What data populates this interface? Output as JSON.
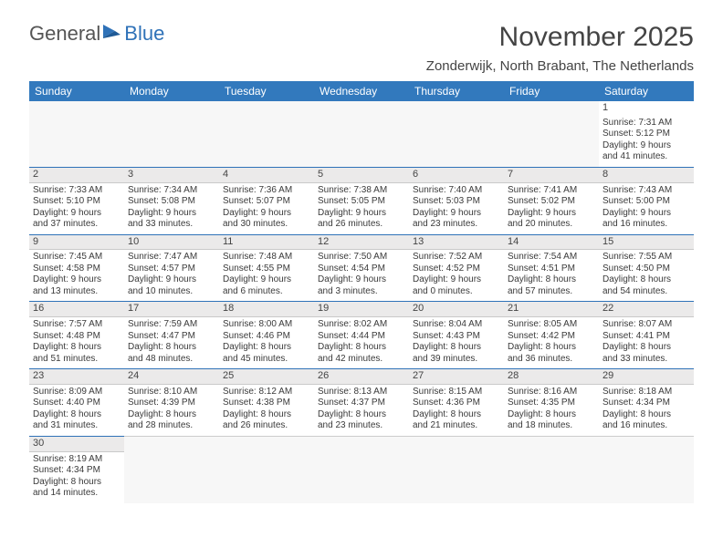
{
  "logo": {
    "text_general": "General",
    "text_blue": "Blue"
  },
  "header": {
    "month_title": "November 2025",
    "location": "Zonderwijk, North Brabant, The Netherlands"
  },
  "colors": {
    "header_bg": "#3279bd",
    "header_fg": "#ffffff",
    "row_divider": "#2f72b8",
    "daynum_bg": "#ebeaea",
    "text": "#3a3a3a"
  },
  "day_headers": [
    "Sunday",
    "Monday",
    "Tuesday",
    "Wednesday",
    "Thursday",
    "Friday",
    "Saturday"
  ],
  "weeks": [
    [
      null,
      null,
      null,
      null,
      null,
      null,
      {
        "n": "1",
        "sr": "Sunrise: 7:31 AM",
        "ss": "Sunset: 5:12 PM",
        "d1": "Daylight: 9 hours",
        "d2": "and 41 minutes."
      }
    ],
    [
      {
        "n": "2",
        "sr": "Sunrise: 7:33 AM",
        "ss": "Sunset: 5:10 PM",
        "d1": "Daylight: 9 hours",
        "d2": "and 37 minutes."
      },
      {
        "n": "3",
        "sr": "Sunrise: 7:34 AM",
        "ss": "Sunset: 5:08 PM",
        "d1": "Daylight: 9 hours",
        "d2": "and 33 minutes."
      },
      {
        "n": "4",
        "sr": "Sunrise: 7:36 AM",
        "ss": "Sunset: 5:07 PM",
        "d1": "Daylight: 9 hours",
        "d2": "and 30 minutes."
      },
      {
        "n": "5",
        "sr": "Sunrise: 7:38 AM",
        "ss": "Sunset: 5:05 PM",
        "d1": "Daylight: 9 hours",
        "d2": "and 26 minutes."
      },
      {
        "n": "6",
        "sr": "Sunrise: 7:40 AM",
        "ss": "Sunset: 5:03 PM",
        "d1": "Daylight: 9 hours",
        "d2": "and 23 minutes."
      },
      {
        "n": "7",
        "sr": "Sunrise: 7:41 AM",
        "ss": "Sunset: 5:02 PM",
        "d1": "Daylight: 9 hours",
        "d2": "and 20 minutes."
      },
      {
        "n": "8",
        "sr": "Sunrise: 7:43 AM",
        "ss": "Sunset: 5:00 PM",
        "d1": "Daylight: 9 hours",
        "d2": "and 16 minutes."
      }
    ],
    [
      {
        "n": "9",
        "sr": "Sunrise: 7:45 AM",
        "ss": "Sunset: 4:58 PM",
        "d1": "Daylight: 9 hours",
        "d2": "and 13 minutes."
      },
      {
        "n": "10",
        "sr": "Sunrise: 7:47 AM",
        "ss": "Sunset: 4:57 PM",
        "d1": "Daylight: 9 hours",
        "d2": "and 10 minutes."
      },
      {
        "n": "11",
        "sr": "Sunrise: 7:48 AM",
        "ss": "Sunset: 4:55 PM",
        "d1": "Daylight: 9 hours",
        "d2": "and 6 minutes."
      },
      {
        "n": "12",
        "sr": "Sunrise: 7:50 AM",
        "ss": "Sunset: 4:54 PM",
        "d1": "Daylight: 9 hours",
        "d2": "and 3 minutes."
      },
      {
        "n": "13",
        "sr": "Sunrise: 7:52 AM",
        "ss": "Sunset: 4:52 PM",
        "d1": "Daylight: 9 hours",
        "d2": "and 0 minutes."
      },
      {
        "n": "14",
        "sr": "Sunrise: 7:54 AM",
        "ss": "Sunset: 4:51 PM",
        "d1": "Daylight: 8 hours",
        "d2": "and 57 minutes."
      },
      {
        "n": "15",
        "sr": "Sunrise: 7:55 AM",
        "ss": "Sunset: 4:50 PM",
        "d1": "Daylight: 8 hours",
        "d2": "and 54 minutes."
      }
    ],
    [
      {
        "n": "16",
        "sr": "Sunrise: 7:57 AM",
        "ss": "Sunset: 4:48 PM",
        "d1": "Daylight: 8 hours",
        "d2": "and 51 minutes."
      },
      {
        "n": "17",
        "sr": "Sunrise: 7:59 AM",
        "ss": "Sunset: 4:47 PM",
        "d1": "Daylight: 8 hours",
        "d2": "and 48 minutes."
      },
      {
        "n": "18",
        "sr": "Sunrise: 8:00 AM",
        "ss": "Sunset: 4:46 PM",
        "d1": "Daylight: 8 hours",
        "d2": "and 45 minutes."
      },
      {
        "n": "19",
        "sr": "Sunrise: 8:02 AM",
        "ss": "Sunset: 4:44 PM",
        "d1": "Daylight: 8 hours",
        "d2": "and 42 minutes."
      },
      {
        "n": "20",
        "sr": "Sunrise: 8:04 AM",
        "ss": "Sunset: 4:43 PM",
        "d1": "Daylight: 8 hours",
        "d2": "and 39 minutes."
      },
      {
        "n": "21",
        "sr": "Sunrise: 8:05 AM",
        "ss": "Sunset: 4:42 PM",
        "d1": "Daylight: 8 hours",
        "d2": "and 36 minutes."
      },
      {
        "n": "22",
        "sr": "Sunrise: 8:07 AM",
        "ss": "Sunset: 4:41 PM",
        "d1": "Daylight: 8 hours",
        "d2": "and 33 minutes."
      }
    ],
    [
      {
        "n": "23",
        "sr": "Sunrise: 8:09 AM",
        "ss": "Sunset: 4:40 PM",
        "d1": "Daylight: 8 hours",
        "d2": "and 31 minutes."
      },
      {
        "n": "24",
        "sr": "Sunrise: 8:10 AM",
        "ss": "Sunset: 4:39 PM",
        "d1": "Daylight: 8 hours",
        "d2": "and 28 minutes."
      },
      {
        "n": "25",
        "sr": "Sunrise: 8:12 AM",
        "ss": "Sunset: 4:38 PM",
        "d1": "Daylight: 8 hours",
        "d2": "and 26 minutes."
      },
      {
        "n": "26",
        "sr": "Sunrise: 8:13 AM",
        "ss": "Sunset: 4:37 PM",
        "d1": "Daylight: 8 hours",
        "d2": "and 23 minutes."
      },
      {
        "n": "27",
        "sr": "Sunrise: 8:15 AM",
        "ss": "Sunset: 4:36 PM",
        "d1": "Daylight: 8 hours",
        "d2": "and 21 minutes."
      },
      {
        "n": "28",
        "sr": "Sunrise: 8:16 AM",
        "ss": "Sunset: 4:35 PM",
        "d1": "Daylight: 8 hours",
        "d2": "and 18 minutes."
      },
      {
        "n": "29",
        "sr": "Sunrise: 8:18 AM",
        "ss": "Sunset: 4:34 PM",
        "d1": "Daylight: 8 hours",
        "d2": "and 16 minutes."
      }
    ],
    [
      {
        "n": "30",
        "sr": "Sunrise: 8:19 AM",
        "ss": "Sunset: 4:34 PM",
        "d1": "Daylight: 8 hours",
        "d2": "and 14 minutes."
      },
      null,
      null,
      null,
      null,
      null,
      null
    ]
  ]
}
